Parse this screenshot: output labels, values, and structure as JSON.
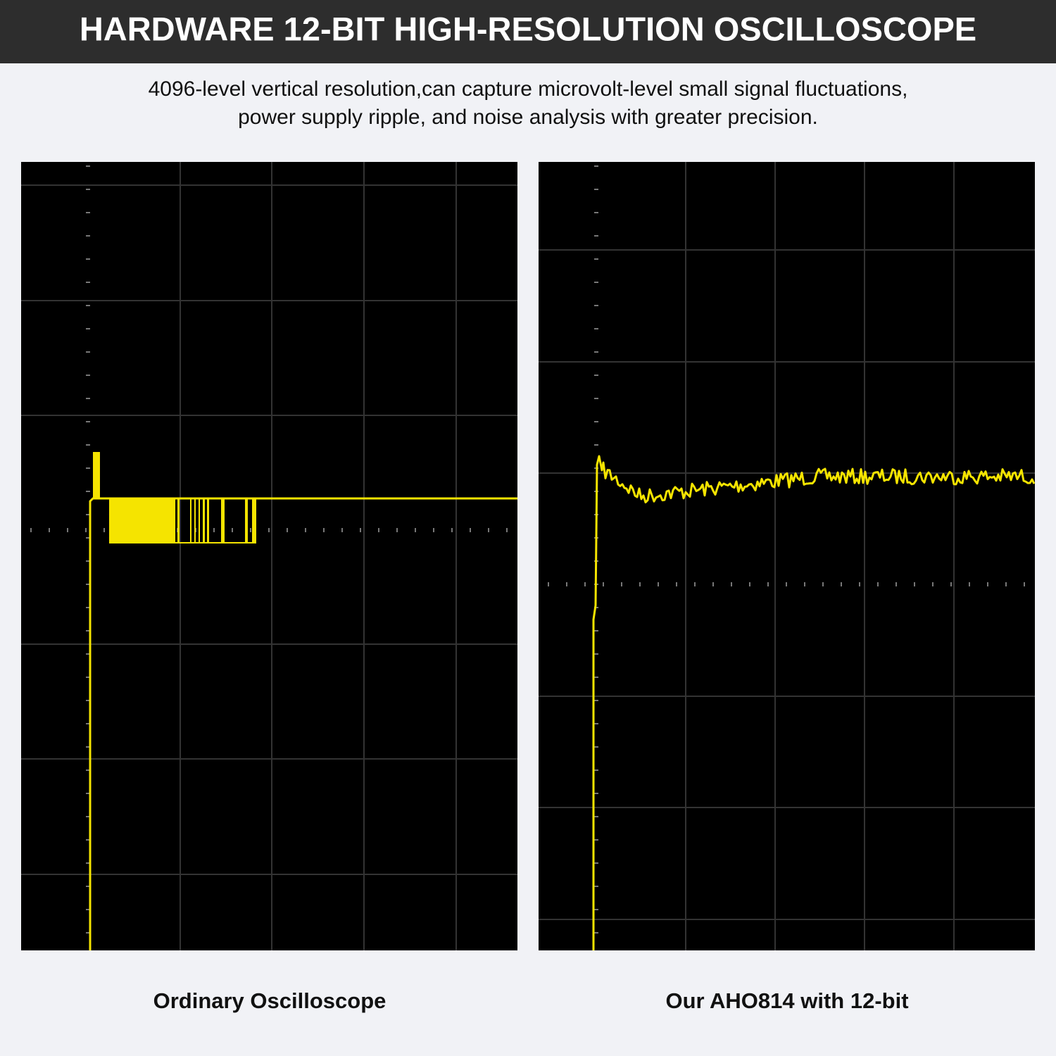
{
  "header": {
    "title": "HARDWARE 12-BIT HIGH-RESOLUTION OSCILLOSCOPE"
  },
  "description": {
    "lines": [
      "4096-level vertical resolution,can capture microvolt-level small signal fluctuations,",
      "power supply ripple, and noise analysis with greater precision."
    ]
  },
  "panels": [
    {
      "caption": "Ordinary Oscilloscope"
    },
    {
      "caption": "Our AHO814 with 12-bit"
    }
  ]
}
